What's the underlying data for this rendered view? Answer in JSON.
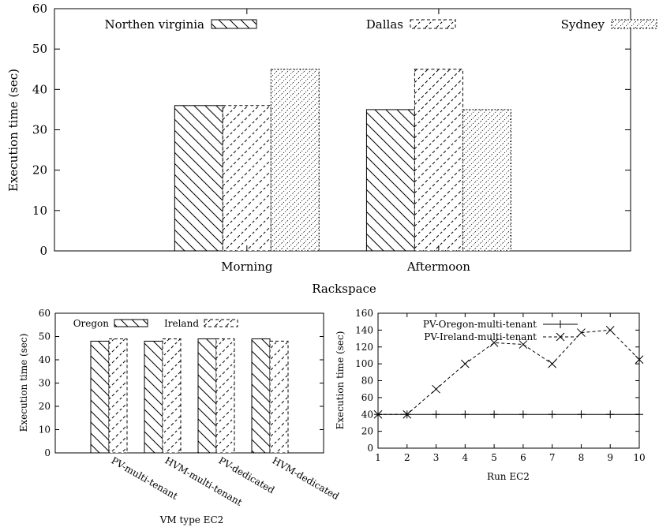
{
  "chart_data": [
    {
      "type": "bar",
      "title": "",
      "xlabel": "Rackspace",
      "ylabel": "Execution time (sec)",
      "categories": [
        "Morning",
        "Aftermoon"
      ],
      "series": [
        {
          "name": "Northen virginia",
          "values": [
            36,
            35
          ],
          "pattern": "hatch-back"
        },
        {
          "name": "Dallas",
          "values": [
            36,
            45
          ],
          "pattern": "hatch-dashed"
        },
        {
          "name": "Sydney",
          "values": [
            45,
            35
          ],
          "pattern": "hatch-dotted"
        }
      ],
      "ylim": [
        0,
        60
      ],
      "yticks": [
        0,
        10,
        20,
        30,
        40,
        50,
        60
      ],
      "legend": "top",
      "grid": false
    },
    {
      "type": "bar",
      "title": "",
      "xlabel": "VM type EC2",
      "ylabel": "Execution time (sec)",
      "categories": [
        "PV-multi-tenant",
        "HVM-multi-tenant",
        "PV-dedicated",
        "HVM-dedicated"
      ],
      "series": [
        {
          "name": "Oregon",
          "values": [
            48,
            48,
            49,
            49
          ],
          "pattern": "hatch-back"
        },
        {
          "name": "Ireland",
          "values": [
            49,
            49,
            49,
            48
          ],
          "pattern": "hatch-dashed"
        }
      ],
      "ylim": [
        0,
        60
      ],
      "yticks": [
        0,
        10,
        20,
        30,
        40,
        50,
        60
      ],
      "legend": "top",
      "grid": false
    },
    {
      "type": "line",
      "title": "",
      "xlabel": "Run EC2",
      "ylabel": "Execution time (sec)",
      "x": [
        1,
        2,
        3,
        4,
        5,
        6,
        7,
        8,
        9,
        10
      ],
      "series": [
        {
          "name": "PV-Oregon-multi-tenant",
          "values": [
            40,
            40,
            40,
            40,
            40,
            40,
            40,
            40,
            40,
            40
          ],
          "marker": "plus",
          "line": "solid"
        },
        {
          "name": "PV-Ireland-multi-tenant",
          "values": [
            40,
            40,
            70,
            100,
            125,
            123,
            100,
            137,
            140,
            105
          ],
          "marker": "cross",
          "line": "dashed"
        }
      ],
      "xlim": [
        1,
        10
      ],
      "ylim": [
        0,
        160
      ],
      "xticks": [
        1,
        2,
        3,
        4,
        5,
        6,
        7,
        8,
        9,
        10
      ],
      "yticks": [
        0,
        20,
        40,
        60,
        80,
        100,
        120,
        140,
        160
      ],
      "legend": "top-left",
      "grid": false
    }
  ]
}
